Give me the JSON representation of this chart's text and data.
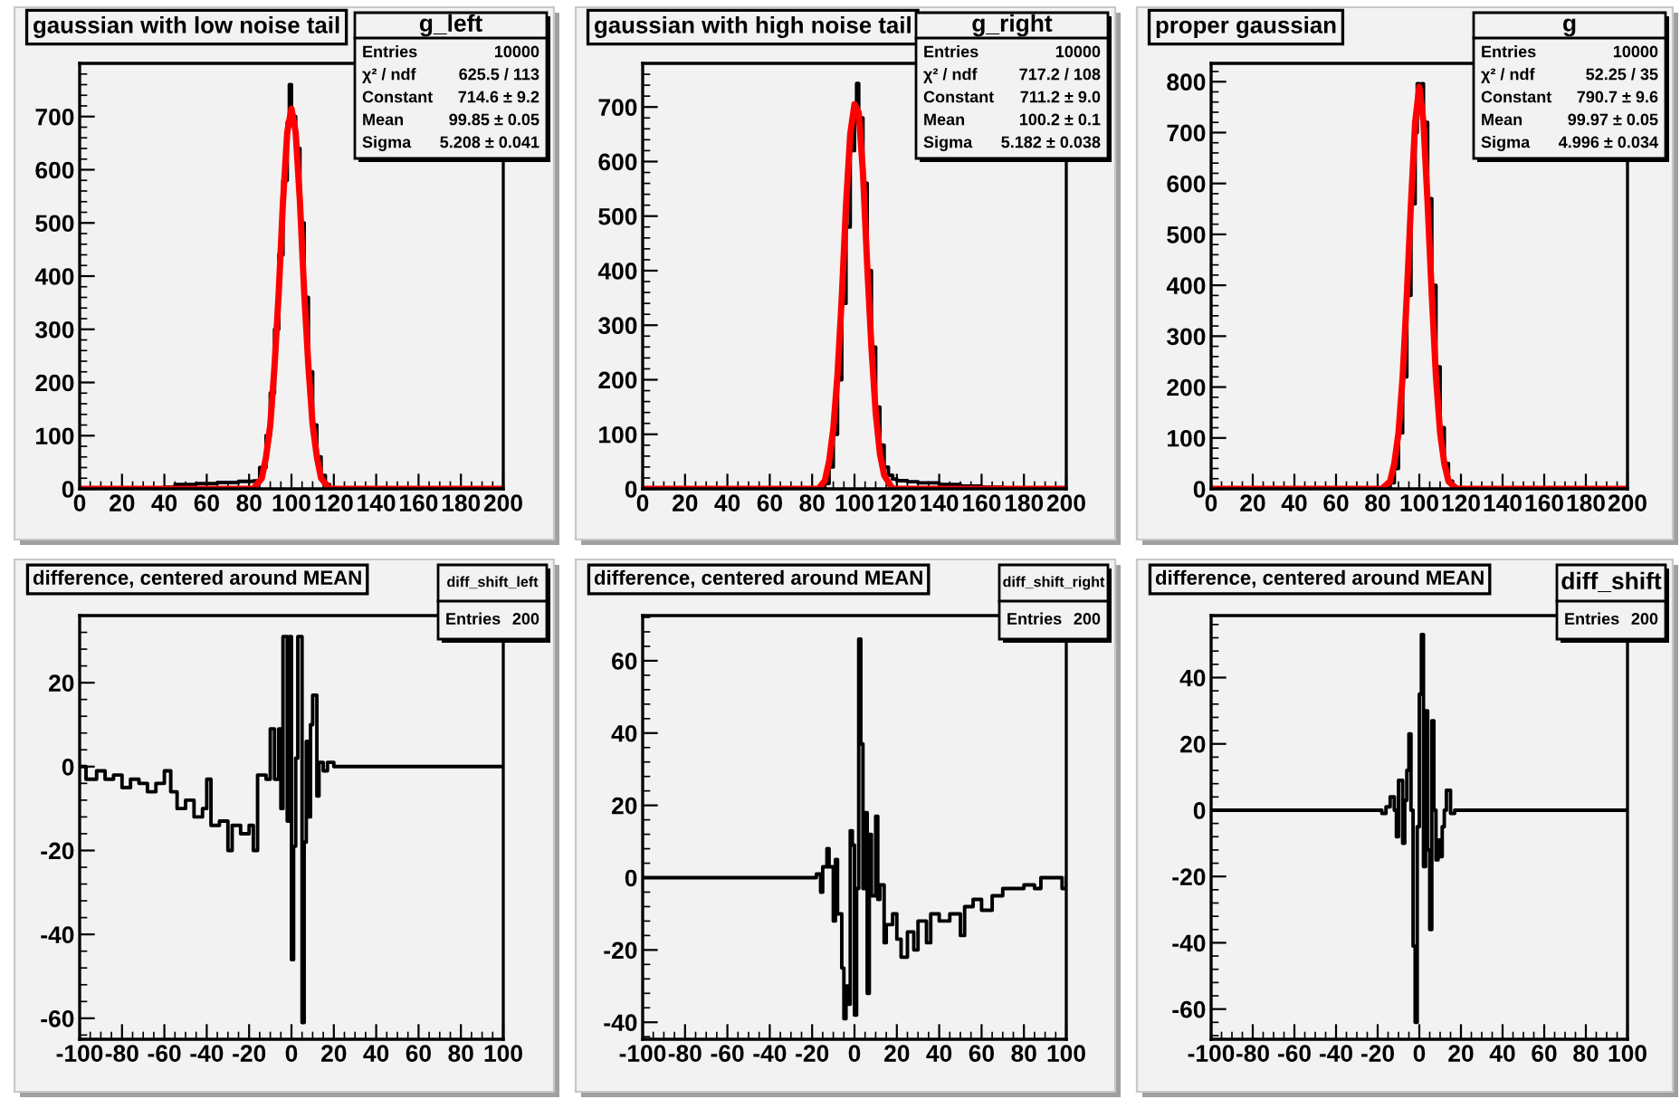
{
  "chart_data": [
    {
      "type": "step",
      "title": "gaussian with low noise tail",
      "xlim": [
        0,
        200
      ],
      "xticks": [
        0,
        20,
        40,
        60,
        80,
        100,
        120,
        140,
        160,
        180,
        200
      ],
      "ylim": [
        0,
        800
      ],
      "yticks": [
        0,
        100,
        200,
        300,
        400,
        500,
        600,
        700
      ],
      "grid": false,
      "annotations": [
        "g_left",
        "Entries",
        "10000",
        "χ² / ndf",
        "625.5 / 113",
        "Constant",
        "714.6 ± 9.2",
        "Mean",
        "99.85 ± 0.05",
        "Sigma",
        "5.208 ± 0.041"
      ],
      "series": [
        {
          "color": "#000000",
          "x": [
            0,
            40,
            45,
            55,
            65,
            75,
            82,
            85,
            88,
            90,
            92,
            94,
            96,
            98,
            99,
            100,
            102,
            104,
            106,
            108,
            110,
            112,
            114,
            116,
            118,
            120,
            200
          ],
          "values": [
            0,
            3,
            8,
            10,
            12,
            14,
            15,
            40,
            100,
            180,
            300,
            440,
            580,
            690,
            760,
            700,
            640,
            500,
            360,
            220,
            120,
            60,
            25,
            8,
            2,
            0,
            0
          ]
        },
        {
          "type": "line",
          "color": "#ff0000",
          "x": [
            0,
            82,
            86,
            88,
            90,
            92,
            94,
            96,
            98,
            100,
            102,
            104,
            106,
            108,
            110,
            112,
            114,
            118,
            200
          ],
          "values": [
            0,
            0,
            20,
            60,
            120,
            230,
            370,
            540,
            670,
            715,
            670,
            540,
            370,
            230,
            120,
            60,
            20,
            0,
            0
          ]
        }
      ]
    },
    {
      "type": "step",
      "title": "gaussian with high noise tail",
      "xlim": [
        0,
        200
      ],
      "xticks": [
        0,
        20,
        40,
        60,
        80,
        100,
        120,
        140,
        160,
        180,
        200
      ],
      "ylim": [
        0,
        780
      ],
      "yticks": [
        0,
        100,
        200,
        300,
        400,
        500,
        600,
        700
      ],
      "grid": false,
      "annotations": [
        "g_right",
        "Entries",
        "10000",
        "χ² / ndf",
        "717.2 / 108",
        "Constant",
        "711.2 ± 9.0",
        "Mean",
        "100.2 ± 0.1",
        "Sigma",
        "5.182 ± 0.038"
      ],
      "series": [
        {
          "color": "#000000",
          "x": [
            0,
            84,
            86,
            88,
            90,
            92,
            94,
            96,
            98,
            100,
            101,
            102,
            104,
            106,
            108,
            110,
            112,
            114,
            116,
            118,
            120,
            125,
            130,
            140,
            150,
            160,
            170,
            200
          ],
          "values": [
            0,
            2,
            10,
            40,
            100,
            200,
            340,
            480,
            620,
            700,
            743,
            680,
            560,
            400,
            260,
            150,
            80,
            40,
            25,
            18,
            15,
            13,
            11,
            8,
            5,
            3,
            1,
            0
          ]
        },
        {
          "type": "line",
          "color": "#ff0000",
          "x": [
            0,
            83,
            86,
            88,
            90,
            92,
            94,
            96,
            98,
            100,
            102,
            104,
            106,
            108,
            110,
            112,
            114,
            118,
            200
          ],
          "values": [
            0,
            0,
            15,
            50,
            110,
            210,
            350,
            520,
            650,
            705,
            690,
            580,
            410,
            260,
            140,
            65,
            25,
            0,
            0
          ]
        }
      ]
    },
    {
      "type": "step",
      "title": "proper gaussian",
      "xlim": [
        0,
        200
      ],
      "xticks": [
        0,
        20,
        40,
        60,
        80,
        100,
        120,
        140,
        160,
        180,
        200
      ],
      "ylim": [
        0,
        836
      ],
      "yticks": [
        0,
        100,
        200,
        300,
        400,
        500,
        600,
        700,
        800
      ],
      "grid": false,
      "annotations": [
        "g",
        "Entries",
        "10000",
        "χ² / ndf",
        "52.25 / 35",
        "Constant",
        "790.7 ± 9.6",
        "Mean",
        "99.97 ± 0.05",
        "Sigma",
        "4.996 ± 0.034"
      ],
      "series": [
        {
          "color": "#000000",
          "x": [
            0,
            84,
            86,
            88,
            90,
            92,
            94,
            96,
            98,
            99,
            100,
            101,
            102,
            104,
            106,
            108,
            110,
            112,
            114,
            116,
            118,
            200
          ],
          "values": [
            0,
            3,
            12,
            40,
            110,
            220,
            380,
            560,
            700,
            796,
            770,
            796,
            720,
            570,
            400,
            240,
            120,
            50,
            15,
            4,
            0,
            0
          ]
        },
        {
          "type": "line",
          "color": "#ff0000",
          "x": [
            0,
            82,
            86,
            88,
            90,
            92,
            94,
            96,
            98,
            100,
            102,
            104,
            106,
            108,
            110,
            112,
            114,
            118,
            200
          ],
          "values": [
            0,
            0,
            15,
            50,
            110,
            220,
            380,
            560,
            720,
            790,
            720,
            560,
            380,
            220,
            110,
            50,
            15,
            0,
            0
          ]
        }
      ]
    },
    {
      "type": "step",
      "title": "difference, centered around MEAN",
      "xlim": [
        -100,
        100
      ],
      "xticks": [
        -100,
        -80,
        -60,
        -40,
        -20,
        0,
        20,
        40,
        60,
        80,
        100
      ],
      "ylim": [
        -65,
        36
      ],
      "yticks": [
        -60,
        -40,
        -20,
        0,
        20
      ],
      "grid": false,
      "annotations": [
        "diff_shift_left",
        "Entries",
        "200"
      ],
      "series": [
        {
          "color": "#000000",
          "x": [
            -100,
            -97,
            -92,
            -88,
            -84,
            -80,
            -76,
            -72,
            -68,
            -64,
            -60,
            -57,
            -54,
            -50,
            -46,
            -42,
            -40,
            -38,
            -34,
            -30,
            -28,
            -24,
            -20,
            -18,
            -16,
            -12,
            -10,
            -8,
            -6,
            -5,
            -4,
            -2,
            -1,
            0,
            1,
            2,
            3,
            5,
            6,
            7,
            8,
            9,
            10,
            12,
            13,
            15,
            17,
            20,
            24,
            100
          ],
          "values": [
            0,
            -3,
            -1,
            -3,
            -2,
            -5,
            -3,
            -4,
            -6,
            -4,
            -1,
            -6,
            -10,
            -8,
            -12,
            -10,
            -3,
            -14,
            -13,
            -20,
            -14,
            -16,
            -14,
            -20,
            -2,
            -3,
            9,
            -3,
            9,
            -10,
            31,
            -13,
            31,
            -46,
            -19,
            2,
            31,
            -61,
            -18,
            6,
            -12,
            10,
            17,
            -7,
            1,
            -1,
            1,
            0,
            0,
            0
          ]
        }
      ]
    },
    {
      "type": "step",
      "title": "difference, centered around MEAN",
      "xlim": [
        -100,
        100
      ],
      "xticks": [
        -100,
        -80,
        -60,
        -40,
        -20,
        0,
        20,
        40,
        60,
        80,
        100
      ],
      "ylim": [
        -44.7,
        72.5
      ],
      "yticks": [
        -40,
        -20,
        0,
        20,
        40,
        60
      ],
      "grid": false,
      "annotations": [
        "diff_shift_right",
        "Entries",
        "200"
      ],
      "series": [
        {
          "color": "#000000",
          "x": [
            -100,
            -18,
            -16,
            -15,
            -13,
            -12,
            -10,
            -9,
            -8,
            -6,
            -5,
            -4,
            -3,
            -2,
            -1,
            0,
            1,
            2,
            3,
            4,
            5,
            6,
            7,
            8,
            10,
            11,
            12,
            14,
            15,
            18,
            20,
            22,
            25,
            28,
            30,
            34,
            36,
            40,
            45,
            50,
            52,
            56,
            60,
            65,
            70,
            75,
            80,
            85,
            88,
            95,
            98,
            100
          ],
          "values": [
            0,
            1,
            -4,
            3,
            8,
            3,
            -12,
            5,
            -10,
            -25,
            -39,
            -30,
            -35,
            13,
            9,
            -38,
            -3,
            66,
            37,
            -3,
            18,
            -32,
            12,
            -5,
            17,
            -6,
            -2,
            -18,
            -13,
            -10,
            -17,
            -22,
            -15,
            -20,
            -12,
            -18,
            -10,
            -12,
            -10,
            -16,
            -8,
            -6,
            -9,
            -5,
            -3,
            -3,
            -2,
            -3,
            0,
            0,
            -3,
            0
          ]
        }
      ]
    },
    {
      "type": "step",
      "title": "difference, centered around MEAN",
      "xlim": [
        -100,
        100
      ],
      "xticks": [
        -100,
        -80,
        -60,
        -40,
        -20,
        0,
        20,
        40,
        60,
        80,
        100
      ],
      "ylim": [
        -69.1,
        58.7
      ],
      "yticks": [
        -60,
        -40,
        -20,
        0,
        20,
        40
      ],
      "grid": false,
      "annotations": [
        "diff_shift",
        "Entries",
        "200"
      ],
      "series": [
        {
          "color": "#000000",
          "x": [
            -100,
            -20,
            -18,
            -16,
            -14,
            -12,
            -11,
            -10,
            -8,
            -7,
            -6,
            -5,
            -4,
            -3,
            -2,
            -1,
            0,
            1,
            2,
            3,
            4,
            5,
            6,
            7,
            8,
            9,
            10,
            11,
            12,
            13,
            15,
            17,
            20,
            100
          ],
          "values": [
            0,
            0,
            -1,
            1,
            4,
            0,
            -8,
            9,
            -10,
            3,
            12,
            23,
            0,
            -41,
            -64,
            -5,
            35,
            53,
            -17,
            30,
            -12,
            -36,
            27,
            0,
            -15,
            -9,
            -14,
            -5,
            0,
            6,
            -1,
            0,
            0,
            0
          ]
        }
      ]
    }
  ]
}
